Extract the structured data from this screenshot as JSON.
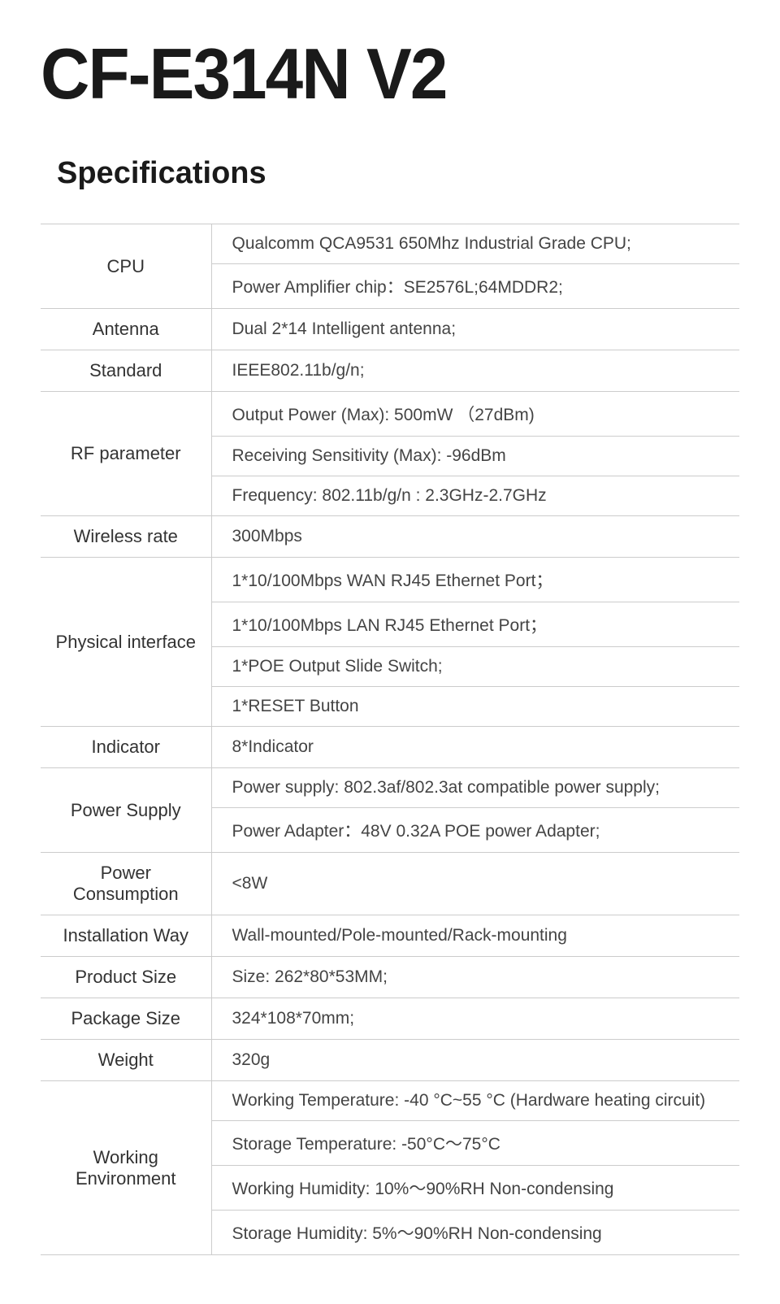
{
  "title": "CF-E314N V2",
  "section_heading": "Specifications",
  "table": {
    "label_col_width": 210,
    "font_size_label": 22,
    "font_size_value": 21,
    "border_color": "#cccccc",
    "text_color": "#444444",
    "rows": [
      {
        "label": "CPU",
        "values": [
          "Qualcomm QCA9531 650Mhz Industrial Grade CPU;",
          "Power Amplifier chip：SE2576L;64MDDR2;"
        ]
      },
      {
        "label": "Antenna",
        "values": [
          "Dual 2*14 Intelligent antenna;"
        ]
      },
      {
        "label": "Standard",
        "values": [
          "IEEE802.11b/g/n;"
        ]
      },
      {
        "label": "RF parameter",
        "values": [
          "Output Power (Max): 500mW （27dBm)",
          "Receiving Sensitivity (Max): -96dBm",
          "Frequency: 802.11b/g/n : 2.3GHz-2.7GHz"
        ]
      },
      {
        "label": "Wireless rate",
        "values": [
          "300Mbps"
        ]
      },
      {
        "label": "Physical interface",
        "values": [
          "1*10/100Mbps WAN RJ45 Ethernet Port；",
          "1*10/100Mbps LAN RJ45 Ethernet Port；",
          "1*POE Output Slide Switch;",
          "1*RESET Button"
        ]
      },
      {
        "label": "Indicator",
        "values": [
          "8*Indicator"
        ]
      },
      {
        "label": "Power Supply",
        "values": [
          "Power supply: 802.3af/802.3at compatible power supply;",
          "Power Adapter：48V 0.32A POE power Adapter;"
        ]
      },
      {
        "label": "Power Consumption",
        "values": [
          "<8W"
        ]
      },
      {
        "label": "Installation Way",
        "values": [
          "Wall-mounted/Pole-mounted/Rack-mounting"
        ]
      },
      {
        "label": "Product Size",
        "values": [
          "Size: 262*80*53MM;"
        ]
      },
      {
        "label": "Package Size",
        "values": [
          "324*108*70mm;"
        ]
      },
      {
        "label": "Weight",
        "values": [
          "320g"
        ]
      },
      {
        "label": "Working Environment",
        "values": [
          "Working Temperature: -40 °C~55 °C (Hardware heating circuit)",
          "Storage Temperature: -50°C～75°C",
          "Working Humidity: 10%～90%RH Non-condensing",
          "Storage Humidity: 5%～90%RH Non-condensing"
        ]
      }
    ]
  }
}
